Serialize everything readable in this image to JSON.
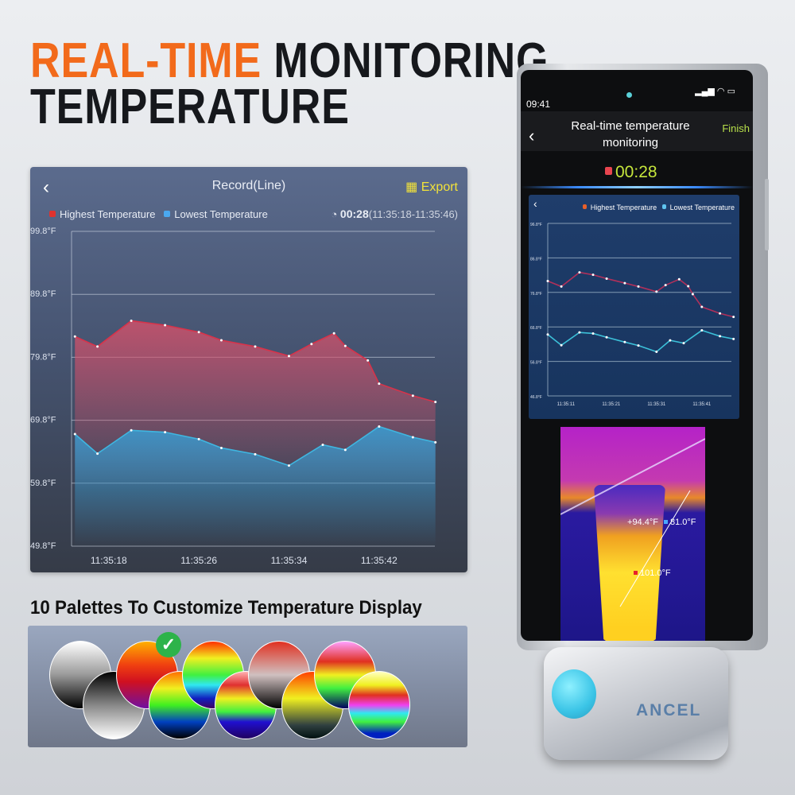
{
  "headline": {
    "accent": "REAL-TIME",
    "rest": "MONITORING",
    "line2": "TEMPERATURE"
  },
  "record": {
    "title": "Record(Line)",
    "export_label": "Export",
    "legend_high": "Highest Temperature",
    "legend_low": "Lowest Temperature",
    "duration": "00:28",
    "range": "(11:35:18-11:35:46)"
  },
  "palettes": {
    "heading": "10 Palettes To Customize Temperature Display",
    "selected_index": 2,
    "count": 10
  },
  "phone": {
    "time": "09:41",
    "title_line1": "Real-time temperature",
    "title_line2": "monitoring",
    "finish_label": "Finish",
    "timer": "00:28",
    "legend_high": "Highest Temperature",
    "legend_low": "Lowest Temperature",
    "thermal": {
      "center": "94.4°F",
      "low": "81.0°F",
      "high": "101.0°F"
    }
  },
  "device": {
    "brand": "ANCEL"
  },
  "colors": {
    "accent": "#f26a1b",
    "high": "#d8334a",
    "low": "#3fb6e0",
    "finish": "#b8e04a",
    "check": "#2db34a"
  },
  "chart_data": [
    {
      "type": "area",
      "title": "Record(Line)",
      "ylim": [
        49.8,
        99.8
      ],
      "yticks": [
        "99.8°F",
        "89.8°F",
        "79.8°F",
        "69.8°F",
        "59.8°F",
        "49.8°F"
      ],
      "xticks": [
        "11:35:18",
        "11:35:26",
        "11:35:34",
        "11:35:42"
      ],
      "grid": true,
      "legend": "top-left",
      "series": [
        {
          "name": "Highest Temperature",
          "x": [
            "11:35:15",
            "11:35:17",
            "11:35:20",
            "11:35:23",
            "11:35:26",
            "11:35:28",
            "11:35:31",
            "11:35:34",
            "11:35:36",
            "11:35:38",
            "11:35:39",
            "11:35:41",
            "11:35:42",
            "11:35:45",
            "11:35:47"
          ],
          "values": [
            83.1,
            81.5,
            85.6,
            84.9,
            83.8,
            82.5,
            81.5,
            80.0,
            81.9,
            83.6,
            81.6,
            79.3,
            75.6,
            73.7,
            72.7
          ]
        },
        {
          "name": "Lowest Temperature",
          "x": [
            "11:35:15",
            "11:35:17",
            "11:35:20",
            "11:35:23",
            "11:35:26",
            "11:35:28",
            "11:35:31",
            "11:35:34",
            "11:35:37",
            "11:35:39",
            "11:35:42",
            "11:35:45",
            "11:35:47"
          ],
          "values": [
            67.6,
            64.5,
            68.2,
            67.9,
            66.8,
            65.4,
            64.4,
            62.6,
            65.9,
            65.1,
            68.8,
            67.1,
            66.3
          ]
        }
      ]
    },
    {
      "type": "line",
      "ylim": [
        46.8,
        96.8
      ],
      "yticks": [
        "96.8°F",
        "86.8°F",
        "76.8°F",
        "66.8°F",
        "56.8°F",
        "46.8°F"
      ],
      "xticks": [
        "11:35:11",
        "11:35:21",
        "11:35:31",
        "11:35:41"
      ],
      "grid": true,
      "legend": "top-right",
      "series": [
        {
          "name": "Highest Temperature",
          "x": [
            "11:35:07",
            "11:35:10",
            "11:35:14",
            "11:35:17",
            "11:35:20",
            "11:35:24",
            "11:35:27",
            "11:35:31",
            "11:35:33",
            "11:35:36",
            "11:35:38",
            "11:35:39",
            "11:35:41",
            "11:35:45",
            "11:35:48"
          ],
          "values": [
            80.1,
            78.5,
            82.6,
            81.9,
            80.8,
            79.5,
            78.5,
            77.0,
            78.9,
            80.6,
            78.6,
            76.3,
            72.6,
            70.7,
            69.7
          ]
        },
        {
          "name": "Lowest Temperature",
          "x": [
            "11:35:07",
            "11:35:10",
            "11:35:14",
            "11:35:17",
            "11:35:20",
            "11:35:24",
            "11:35:27",
            "11:35:31",
            "11:35:34",
            "11:35:37",
            "11:35:41",
            "11:35:45",
            "11:35:48"
          ],
          "values": [
            64.6,
            61.5,
            65.2,
            64.9,
            63.8,
            62.4,
            61.4,
            59.6,
            62.9,
            62.1,
            65.8,
            64.1,
            63.3
          ]
        }
      ]
    }
  ]
}
